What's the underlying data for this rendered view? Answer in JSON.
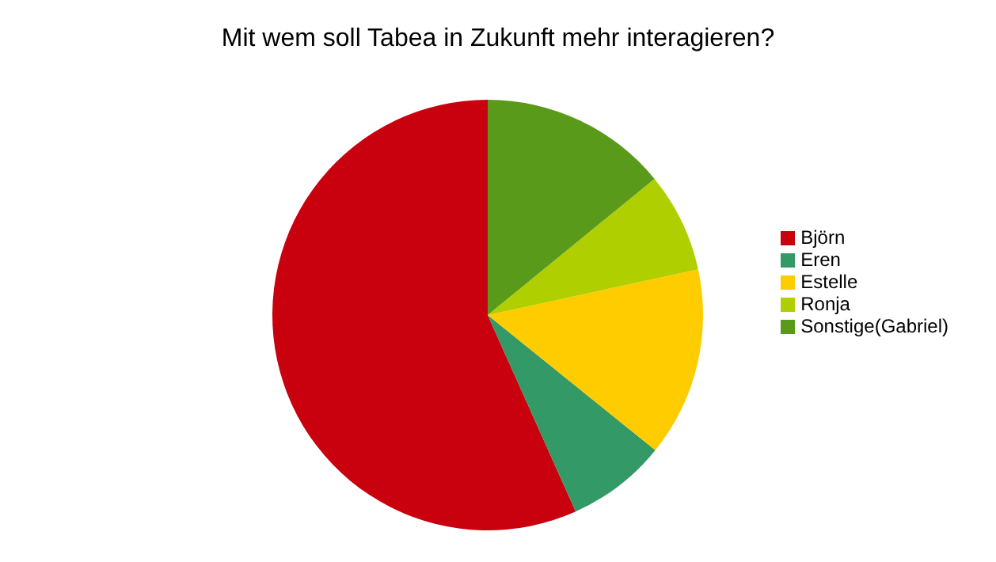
{
  "chart_data": {
    "type": "pie",
    "title": "Mit wem soll Tabea in Zukunft mehr interagieren?",
    "categories": [
      "Björn",
      "Eren",
      "Estelle",
      "Ronja",
      "Sonstige(Gabriel)"
    ],
    "values": [
      56.7,
      7.5,
      14.2,
      7.5,
      14.1
    ],
    "colors": [
      "#c9000d",
      "#339966",
      "#ffcc00",
      "#b0cf00",
      "#5a9a1a"
    ],
    "legend": "right"
  }
}
